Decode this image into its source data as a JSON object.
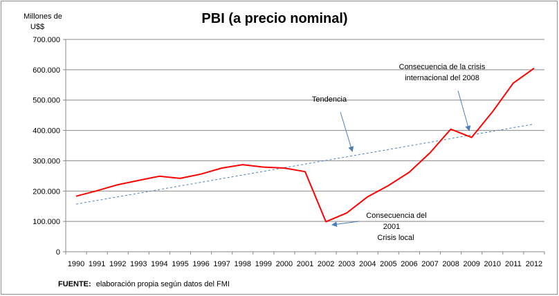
{
  "chart_data": {
    "type": "line",
    "title": "PBI (a precio nominal)",
    "ylabel_lines": [
      "Millones de",
      "U$$"
    ],
    "ylim": [
      0,
      700000
    ],
    "yticks": [
      0,
      100000,
      200000,
      300000,
      400000,
      500000,
      600000,
      700000
    ],
    "ytick_labels": [
      "0",
      "100.000",
      "200.000",
      "300.000",
      "400.000",
      "500.000",
      "600.000",
      "700.000"
    ],
    "categories": [
      "1990",
      "1991",
      "1992",
      "1993",
      "1994",
      "1995",
      "1996",
      "1997",
      "1998",
      "1999",
      "2000",
      "2001",
      "2002",
      "2003",
      "2004",
      "2005",
      "2006",
      "2007",
      "2008",
      "2009",
      "2010",
      "2011",
      "2012"
    ],
    "grid": true,
    "series": [
      {
        "color": "#ff0000",
        "style": "solid",
        "values": [
          183000,
          201000,
          221000,
          235000,
          249000,
          242000,
          256000,
          276000,
          287000,
          279000,
          276000,
          264000,
          99000,
          128000,
          181000,
          218000,
          262000,
          326000,
          404000,
          377000,
          461000,
          556000,
          605000
        ]
      },
      {
        "color": "#4a7ebb",
        "style": "dashed",
        "values": [
          157000,
          169000,
          181000,
          193000,
          205000,
          217000,
          229000,
          241000,
          253000,
          265000,
          277000,
          289000,
          301000,
          313000,
          325000,
          337000,
          349000,
          361000,
          373000,
          385000,
          397000,
          409000,
          421000
        ]
      }
    ],
    "annotations": [
      {
        "name": "tendencia",
        "lines": [
          "Tendencia"
        ]
      },
      {
        "name": "crisis-2008",
        "lines": [
          "Consecuencia de la crisis",
          "internacional del 2008"
        ]
      },
      {
        "name": "crisis-2001",
        "lines": [
          "Consecuencia del",
          "2001",
          "Crisis local"
        ]
      }
    ],
    "source_label": "FUENTE:",
    "source_text": "elaboración propia según datos del FMI"
  }
}
